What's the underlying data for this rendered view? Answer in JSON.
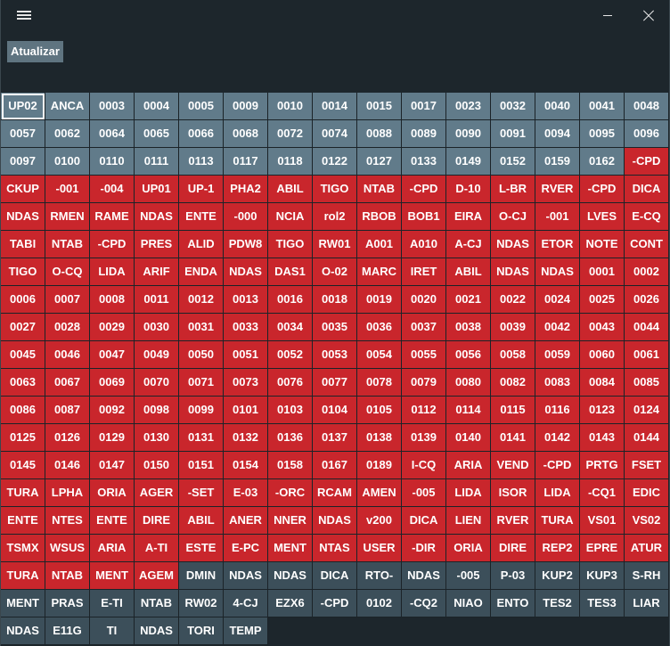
{
  "titlebar": {
    "menu_icon": "hamburger-icon",
    "minimize_icon": "minimize-icon",
    "close_icon": "close-icon"
  },
  "toolbar": {
    "refresh_label": "Atualizar"
  },
  "colors": {
    "gray": "#617b8a",
    "red": "#c9262c",
    "dark": "#3c4f5a",
    "background": "#1d262c"
  },
  "grid": {
    "columns": 15,
    "selected_index": 0,
    "cells": [
      {
        "label": "UP02",
        "status": "gray"
      },
      {
        "label": "ANCA",
        "status": "gray"
      },
      {
        "label": "0003",
        "status": "gray"
      },
      {
        "label": "0004",
        "status": "gray"
      },
      {
        "label": "0005",
        "status": "gray"
      },
      {
        "label": "0009",
        "status": "gray"
      },
      {
        "label": "0010",
        "status": "gray"
      },
      {
        "label": "0014",
        "status": "gray"
      },
      {
        "label": "0015",
        "status": "gray"
      },
      {
        "label": "0017",
        "status": "gray"
      },
      {
        "label": "0023",
        "status": "gray"
      },
      {
        "label": "0032",
        "status": "gray"
      },
      {
        "label": "0040",
        "status": "gray"
      },
      {
        "label": "0041",
        "status": "gray"
      },
      {
        "label": "0048",
        "status": "gray"
      },
      {
        "label": "0057",
        "status": "gray"
      },
      {
        "label": "0062",
        "status": "gray"
      },
      {
        "label": "0064",
        "status": "gray"
      },
      {
        "label": "0065",
        "status": "gray"
      },
      {
        "label": "0066",
        "status": "gray"
      },
      {
        "label": "0068",
        "status": "gray"
      },
      {
        "label": "0072",
        "status": "gray"
      },
      {
        "label": "0074",
        "status": "gray"
      },
      {
        "label": "0088",
        "status": "gray"
      },
      {
        "label": "0089",
        "status": "gray"
      },
      {
        "label": "0090",
        "status": "gray"
      },
      {
        "label": "0091",
        "status": "gray"
      },
      {
        "label": "0094",
        "status": "gray"
      },
      {
        "label": "0095",
        "status": "gray"
      },
      {
        "label": "0096",
        "status": "gray"
      },
      {
        "label": "0097",
        "status": "gray"
      },
      {
        "label": "0100",
        "status": "gray"
      },
      {
        "label": "0110",
        "status": "gray"
      },
      {
        "label": "0111",
        "status": "gray"
      },
      {
        "label": "0113",
        "status": "gray"
      },
      {
        "label": "0117",
        "status": "gray"
      },
      {
        "label": "0118",
        "status": "gray"
      },
      {
        "label": "0122",
        "status": "gray"
      },
      {
        "label": "0127",
        "status": "gray"
      },
      {
        "label": "0133",
        "status": "gray"
      },
      {
        "label": "0149",
        "status": "gray"
      },
      {
        "label": "0152",
        "status": "gray"
      },
      {
        "label": "0159",
        "status": "gray"
      },
      {
        "label": "0162",
        "status": "gray"
      },
      {
        "label": "-CPD",
        "status": "red"
      },
      {
        "label": "CKUP",
        "status": "red"
      },
      {
        "label": "-001",
        "status": "red"
      },
      {
        "label": "-004",
        "status": "red"
      },
      {
        "label": "UP01",
        "status": "red"
      },
      {
        "label": "UP-1",
        "status": "red"
      },
      {
        "label": "PHA2",
        "status": "red"
      },
      {
        "label": "ABIL",
        "status": "red"
      },
      {
        "label": "TIGO",
        "status": "red"
      },
      {
        "label": "NTAB",
        "status": "red"
      },
      {
        "label": "-CPD",
        "status": "red"
      },
      {
        "label": "D-10",
        "status": "red"
      },
      {
        "label": "L-BR",
        "status": "red"
      },
      {
        "label": "RVER",
        "status": "red"
      },
      {
        "label": "-CPD",
        "status": "red"
      },
      {
        "label": "DICA",
        "status": "red"
      },
      {
        "label": "NDAS",
        "status": "red"
      },
      {
        "label": "RMEN",
        "status": "red"
      },
      {
        "label": "RAME",
        "status": "red"
      },
      {
        "label": "NDAS",
        "status": "red"
      },
      {
        "label": "ENTE",
        "status": "red"
      },
      {
        "label": "-000",
        "status": "red"
      },
      {
        "label": "NCIA",
        "status": "red"
      },
      {
        "label": "rol2",
        "status": "red"
      },
      {
        "label": "RBOB",
        "status": "red"
      },
      {
        "label": "BOB1",
        "status": "red"
      },
      {
        "label": "EIRA",
        "status": "red"
      },
      {
        "label": "O-CJ",
        "status": "red"
      },
      {
        "label": "-001",
        "status": "red"
      },
      {
        "label": "LVES",
        "status": "red"
      },
      {
        "label": "E-CQ",
        "status": "red"
      },
      {
        "label": "TABI",
        "status": "red"
      },
      {
        "label": "NTAB",
        "status": "red"
      },
      {
        "label": "-CPD",
        "status": "red"
      },
      {
        "label": "PRES",
        "status": "red"
      },
      {
        "label": "ALID",
        "status": "red"
      },
      {
        "label": "PDW8",
        "status": "red"
      },
      {
        "label": "TIGO",
        "status": "red"
      },
      {
        "label": "RW01",
        "status": "red"
      },
      {
        "label": "A001",
        "status": "red"
      },
      {
        "label": "A010",
        "status": "red"
      },
      {
        "label": "A-CJ",
        "status": "red"
      },
      {
        "label": "NDAS",
        "status": "red"
      },
      {
        "label": "ETOR",
        "status": "red"
      },
      {
        "label": "NOTE",
        "status": "red"
      },
      {
        "label": "CONT",
        "status": "red"
      },
      {
        "label": "TIGO",
        "status": "red"
      },
      {
        "label": "O-CQ",
        "status": "red"
      },
      {
        "label": "LIDA",
        "status": "red"
      },
      {
        "label": "ARIF",
        "status": "red"
      },
      {
        "label": "ENDA",
        "status": "red"
      },
      {
        "label": "NDAS",
        "status": "red"
      },
      {
        "label": "DAS1",
        "status": "red"
      },
      {
        "label": "O-02",
        "status": "red"
      },
      {
        "label": "MARC",
        "status": "red"
      },
      {
        "label": "IRET",
        "status": "red"
      },
      {
        "label": "ABIL",
        "status": "red"
      },
      {
        "label": "NDAS",
        "status": "red"
      },
      {
        "label": "NDAS",
        "status": "red"
      },
      {
        "label": "0001",
        "status": "red"
      },
      {
        "label": "0002",
        "status": "red"
      },
      {
        "label": "0006",
        "status": "red"
      },
      {
        "label": "0007",
        "status": "red"
      },
      {
        "label": "0008",
        "status": "red"
      },
      {
        "label": "0011",
        "status": "red"
      },
      {
        "label": "0012",
        "status": "red"
      },
      {
        "label": "0013",
        "status": "red"
      },
      {
        "label": "0016",
        "status": "red"
      },
      {
        "label": "0018",
        "status": "red"
      },
      {
        "label": "0019",
        "status": "red"
      },
      {
        "label": "0020",
        "status": "red"
      },
      {
        "label": "0021",
        "status": "red"
      },
      {
        "label": "0022",
        "status": "red"
      },
      {
        "label": "0024",
        "status": "red"
      },
      {
        "label": "0025",
        "status": "red"
      },
      {
        "label": "0026",
        "status": "red"
      },
      {
        "label": "0027",
        "status": "red"
      },
      {
        "label": "0028",
        "status": "red"
      },
      {
        "label": "0029",
        "status": "red"
      },
      {
        "label": "0030",
        "status": "red"
      },
      {
        "label": "0031",
        "status": "red"
      },
      {
        "label": "0033",
        "status": "red"
      },
      {
        "label": "0034",
        "status": "red"
      },
      {
        "label": "0035",
        "status": "red"
      },
      {
        "label": "0036",
        "status": "red"
      },
      {
        "label": "0037",
        "status": "red"
      },
      {
        "label": "0038",
        "status": "red"
      },
      {
        "label": "0039",
        "status": "red"
      },
      {
        "label": "0042",
        "status": "red"
      },
      {
        "label": "0043",
        "status": "red"
      },
      {
        "label": "0044",
        "status": "red"
      },
      {
        "label": "0045",
        "status": "red"
      },
      {
        "label": "0046",
        "status": "red"
      },
      {
        "label": "0047",
        "status": "red"
      },
      {
        "label": "0049",
        "status": "red"
      },
      {
        "label": "0050",
        "status": "red"
      },
      {
        "label": "0051",
        "status": "red"
      },
      {
        "label": "0052",
        "status": "red"
      },
      {
        "label": "0053",
        "status": "red"
      },
      {
        "label": "0054",
        "status": "red"
      },
      {
        "label": "0055",
        "status": "red"
      },
      {
        "label": "0056",
        "status": "red"
      },
      {
        "label": "0058",
        "status": "red"
      },
      {
        "label": "0059",
        "status": "red"
      },
      {
        "label": "0060",
        "status": "red"
      },
      {
        "label": "0061",
        "status": "red"
      },
      {
        "label": "0063",
        "status": "red"
      },
      {
        "label": "0067",
        "status": "red"
      },
      {
        "label": "0069",
        "status": "red"
      },
      {
        "label": "0070",
        "status": "red"
      },
      {
        "label": "0071",
        "status": "red"
      },
      {
        "label": "0073",
        "status": "red"
      },
      {
        "label": "0076",
        "status": "red"
      },
      {
        "label": "0077",
        "status": "red"
      },
      {
        "label": "0078",
        "status": "red"
      },
      {
        "label": "0079",
        "status": "red"
      },
      {
        "label": "0080",
        "status": "red"
      },
      {
        "label": "0082",
        "status": "red"
      },
      {
        "label": "0083",
        "status": "red"
      },
      {
        "label": "0084",
        "status": "red"
      },
      {
        "label": "0085",
        "status": "red"
      },
      {
        "label": "0086",
        "status": "red"
      },
      {
        "label": "0087",
        "status": "red"
      },
      {
        "label": "0092",
        "status": "red"
      },
      {
        "label": "0098",
        "status": "red"
      },
      {
        "label": "0099",
        "status": "red"
      },
      {
        "label": "0101",
        "status": "red"
      },
      {
        "label": "0103",
        "status": "red"
      },
      {
        "label": "0104",
        "status": "red"
      },
      {
        "label": "0105",
        "status": "red"
      },
      {
        "label": "0112",
        "status": "red"
      },
      {
        "label": "0114",
        "status": "red"
      },
      {
        "label": "0115",
        "status": "red"
      },
      {
        "label": "0116",
        "status": "red"
      },
      {
        "label": "0123",
        "status": "red"
      },
      {
        "label": "0124",
        "status": "red"
      },
      {
        "label": "0125",
        "status": "red"
      },
      {
        "label": "0126",
        "status": "red"
      },
      {
        "label": "0129",
        "status": "red"
      },
      {
        "label": "0130",
        "status": "red"
      },
      {
        "label": "0131",
        "status": "red"
      },
      {
        "label": "0132",
        "status": "red"
      },
      {
        "label": "0136",
        "status": "red"
      },
      {
        "label": "0137",
        "status": "red"
      },
      {
        "label": "0138",
        "status": "red"
      },
      {
        "label": "0139",
        "status": "red"
      },
      {
        "label": "0140",
        "status": "red"
      },
      {
        "label": "0141",
        "status": "red"
      },
      {
        "label": "0142",
        "status": "red"
      },
      {
        "label": "0143",
        "status": "red"
      },
      {
        "label": "0144",
        "status": "red"
      },
      {
        "label": "0145",
        "status": "red"
      },
      {
        "label": "0146",
        "status": "red"
      },
      {
        "label": "0147",
        "status": "red"
      },
      {
        "label": "0150",
        "status": "red"
      },
      {
        "label": "0151",
        "status": "red"
      },
      {
        "label": "0154",
        "status": "red"
      },
      {
        "label": "0158",
        "status": "red"
      },
      {
        "label": "0167",
        "status": "red"
      },
      {
        "label": "0189",
        "status": "red"
      },
      {
        "label": "I-CQ",
        "status": "red"
      },
      {
        "label": "ARIA",
        "status": "red"
      },
      {
        "label": "VEND",
        "status": "red"
      },
      {
        "label": "-CPD",
        "status": "red"
      },
      {
        "label": "PRTG",
        "status": "red"
      },
      {
        "label": "FSET",
        "status": "red"
      },
      {
        "label": "TURA",
        "status": "red"
      },
      {
        "label": "LPHA",
        "status": "red"
      },
      {
        "label": "ORIA",
        "status": "red"
      },
      {
        "label": "AGER",
        "status": "red"
      },
      {
        "label": "-SET",
        "status": "red"
      },
      {
        "label": "E-03",
        "status": "red"
      },
      {
        "label": "-ORC",
        "status": "red"
      },
      {
        "label": "RCAM",
        "status": "red"
      },
      {
        "label": "AMEN",
        "status": "red"
      },
      {
        "label": "-005",
        "status": "red"
      },
      {
        "label": "LIDA",
        "status": "red"
      },
      {
        "label": "ISOR",
        "status": "red"
      },
      {
        "label": "LIDA",
        "status": "red"
      },
      {
        "label": "-CQ1",
        "status": "red"
      },
      {
        "label": "EDIC",
        "status": "red"
      },
      {
        "label": "ENTE",
        "status": "red"
      },
      {
        "label": "NTES",
        "status": "red"
      },
      {
        "label": "ENTE",
        "status": "red"
      },
      {
        "label": "DIRE",
        "status": "red"
      },
      {
        "label": "ABIL",
        "status": "red"
      },
      {
        "label": "ANER",
        "status": "red"
      },
      {
        "label": "NNER",
        "status": "red"
      },
      {
        "label": "NDAS",
        "status": "red"
      },
      {
        "label": "v200",
        "status": "red"
      },
      {
        "label": "DICA",
        "status": "red"
      },
      {
        "label": "LIEN",
        "status": "red"
      },
      {
        "label": "RVER",
        "status": "red"
      },
      {
        "label": "TURA",
        "status": "red"
      },
      {
        "label": "VS01",
        "status": "red"
      },
      {
        "label": "VS02",
        "status": "red"
      },
      {
        "label": "TSMX",
        "status": "red"
      },
      {
        "label": "WSUS",
        "status": "red"
      },
      {
        "label": "ARIA",
        "status": "red"
      },
      {
        "label": "A-TI",
        "status": "red"
      },
      {
        "label": "ESTE",
        "status": "red"
      },
      {
        "label": "E-PC",
        "status": "red"
      },
      {
        "label": "MENT",
        "status": "red"
      },
      {
        "label": "NTAS",
        "status": "red"
      },
      {
        "label": "USER",
        "status": "red"
      },
      {
        "label": "-DIR",
        "status": "red"
      },
      {
        "label": "ORIA",
        "status": "red"
      },
      {
        "label": "DIRE",
        "status": "red"
      },
      {
        "label": "REP2",
        "status": "red"
      },
      {
        "label": "EPRE",
        "status": "red"
      },
      {
        "label": "ATUR",
        "status": "red"
      },
      {
        "label": "TURA",
        "status": "red"
      },
      {
        "label": "NTAB",
        "status": "red"
      },
      {
        "label": "MENT",
        "status": "red"
      },
      {
        "label": "AGEM",
        "status": "red"
      },
      {
        "label": "DMIN",
        "status": "dark"
      },
      {
        "label": "NDAS",
        "status": "dark"
      },
      {
        "label": "NDAS",
        "status": "dark"
      },
      {
        "label": "DICA",
        "status": "dark"
      },
      {
        "label": "RTO-",
        "status": "dark"
      },
      {
        "label": "NDAS",
        "status": "dark"
      },
      {
        "label": "-005",
        "status": "dark"
      },
      {
        "label": "P-03",
        "status": "dark"
      },
      {
        "label": "KUP2",
        "status": "dark"
      },
      {
        "label": "KUP3",
        "status": "dark"
      },
      {
        "label": "S-RH",
        "status": "dark"
      },
      {
        "label": "MENT",
        "status": "dark"
      },
      {
        "label": "PRAS",
        "status": "dark"
      },
      {
        "label": "E-TI",
        "status": "dark"
      },
      {
        "label": "NTAB",
        "status": "dark"
      },
      {
        "label": "RW02",
        "status": "dark"
      },
      {
        "label": "4-CJ",
        "status": "dark"
      },
      {
        "label": "EZX6",
        "status": "dark"
      },
      {
        "label": "-CPD",
        "status": "dark"
      },
      {
        "label": "0102",
        "status": "dark"
      },
      {
        "label": "-CQ2",
        "status": "dark"
      },
      {
        "label": "NIAO",
        "status": "dark"
      },
      {
        "label": "ENTO",
        "status": "dark"
      },
      {
        "label": "TES2",
        "status": "dark"
      },
      {
        "label": "TES3",
        "status": "dark"
      },
      {
        "label": "LIAR",
        "status": "dark"
      },
      {
        "label": "NDAS",
        "status": "dark"
      },
      {
        "label": "E11G",
        "status": "dark"
      },
      {
        "label": "TI",
        "status": "dark"
      },
      {
        "label": "NDAS",
        "status": "dark"
      },
      {
        "label": "TORI",
        "status": "dark"
      },
      {
        "label": "TEMP",
        "status": "dark"
      }
    ]
  }
}
